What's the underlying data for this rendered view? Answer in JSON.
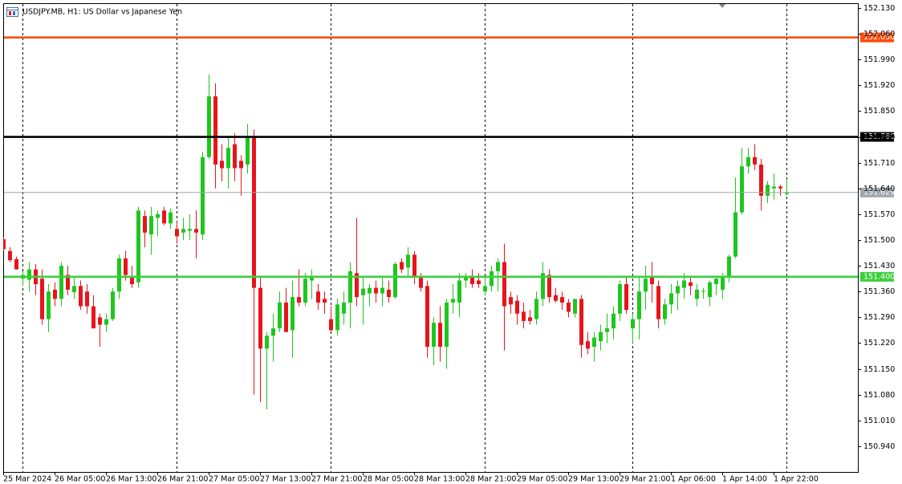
{
  "chart_data": {
    "type": "candlestick",
    "title": "USDJPY.MB, H1:  US Dollar vs Japanese Yen",
    "up_color": "#1fc61f",
    "down_color": "#e8141c",
    "ylim": [
      150.87,
      152.143
    ],
    "yticks": [
      {
        "value": 152.13,
        "label": "152.130"
      },
      {
        "value": 152.06,
        "label": "152.060"
      },
      {
        "value": 151.99,
        "label": "151.990"
      },
      {
        "value": 151.92,
        "label": "151.920"
      },
      {
        "value": 151.85,
        "label": "151.850"
      },
      {
        "value": 151.78,
        "label": "151.780"
      },
      {
        "value": 151.71,
        "label": "151.710"
      },
      {
        "value": 151.64,
        "label": "151.640"
      },
      {
        "value": 151.57,
        "label": "151.570"
      },
      {
        "value": 151.5,
        "label": "151.500"
      },
      {
        "value": 151.43,
        "label": "151.430"
      },
      {
        "value": 151.36,
        "label": "151.360"
      },
      {
        "value": 151.29,
        "label": "151.290"
      },
      {
        "value": 151.22,
        "label": "151.220"
      },
      {
        "value": 151.15,
        "label": "151.150"
      },
      {
        "value": 151.08,
        "label": "151.080"
      },
      {
        "value": 151.01,
        "label": "151.010"
      },
      {
        "value": 150.94,
        "label": "150.940"
      }
    ],
    "hlines": [
      {
        "value": 152.05,
        "label": "152.050",
        "color": "#ff4d0d"
      },
      {
        "value": 151.78,
        "label": "151.780",
        "color": "#000000"
      },
      {
        "value": 151.4,
        "label": "151.400",
        "color": "#3ccf3c"
      }
    ],
    "current_price": {
      "value": 151.629,
      "label": "151.629",
      "color": "#9ea6ae"
    },
    "categories": [
      "25 Mar 2024",
      null,
      null,
      null,
      null,
      null,
      null,
      null,
      "26 Mar 05:00",
      null,
      null,
      null,
      null,
      null,
      null,
      null,
      "26 Mar 13:00",
      null,
      null,
      null,
      null,
      null,
      null,
      null,
      "26 Mar 21:00",
      null,
      null,
      null,
      null,
      null,
      null,
      null,
      "27 Mar 05:00",
      null,
      null,
      null,
      null,
      null,
      null,
      null,
      "27 Mar 13:00",
      null,
      null,
      null,
      null,
      null,
      null,
      null,
      "27 Mar 21:00",
      null,
      null,
      null,
      null,
      null,
      null,
      null,
      "28 Mar 05:00",
      null,
      null,
      null,
      null,
      null,
      null,
      null,
      "28 Mar 13:00",
      null,
      null,
      null,
      null,
      null,
      null,
      null,
      "28 Mar 21:00",
      null,
      null,
      null,
      null,
      null,
      null,
      null,
      "29 Mar 05:00",
      null,
      null,
      null,
      null,
      null,
      null,
      null,
      "29 Mar 13:00",
      null,
      null,
      null,
      null,
      null,
      null,
      null,
      "29 Mar 21:00",
      null,
      null,
      null,
      null,
      null,
      null,
      null,
      "1 Apr 06:00",
      null,
      null,
      null,
      null,
      null,
      null,
      null,
      "1 Apr 14:00",
      null,
      null,
      null,
      null,
      null,
      null,
      null,
      "1 Apr 22:00",
      null,
      null
    ],
    "open": [
      151.502,
      151.47,
      151.448,
      151.395,
      151.392,
      151.42,
      151.395,
      151.285,
      151.365,
      151.34,
      151.405,
      151.358,
      151.375,
      151.36,
      151.32,
      151.29,
      151.27,
      151.285,
      151.36,
      151.45,
      151.4,
      151.385,
      151.565,
      151.515,
      151.56,
      151.58,
      151.545,
      151.53,
      151.52,
      151.525,
      151.53,
      151.515,
      151.725,
      151.89,
      151.715,
      151.695,
      151.76,
      151.715,
      151.705,
      151.78,
      151.37,
      151.205,
      151.24,
      151.26,
      151.33,
      151.255,
      151.345,
      151.33,
      151.39,
      151.36,
      151.34,
      151.285,
      151.255,
      151.3,
      151.33,
      151.41,
      151.35,
      151.355,
      151.37,
      151.355,
      151.365,
      151.345,
      151.44,
      151.425,
      151.46,
      151.4,
      151.375,
      151.21,
      151.275,
      151.21,
      151.33,
      151.33,
      151.39,
      151.398,
      151.39,
      151.36,
      151.375,
      151.415,
      151.44,
      151.345,
      151.335,
      151.305,
      151.29,
      151.285,
      151.34,
      151.405,
      151.35,
      151.345,
      151.33,
      151.3,
      151.34,
      151.225,
      151.21,
      151.225,
      151.25,
      151.26,
      151.3,
      151.38,
      151.26,
      151.285,
      151.36,
      151.4,
      151.375,
      151.285,
      151.325,
      151.355,
      151.37,
      151.385,
      151.34,
      151.36,
      151.345,
      151.38,
      151.365,
      151.4,
      151.455,
      151.575,
      151.7,
      151.725,
      151.705,
      151.62,
      151.64,
      151.645,
      151.625
    ],
    "high": [
      151.508,
      151.48,
      151.455,
      151.415,
      151.44,
      151.435,
      151.42,
      151.38,
      151.385,
      151.44,
      151.43,
      151.4,
      151.39,
      151.38,
      151.35,
      151.3,
      151.3,
      151.37,
      151.46,
      151.47,
      151.43,
      151.59,
      151.58,
      151.59,
      151.58,
      151.59,
      151.585,
      151.55,
      151.56,
      151.57,
      151.58,
      151.74,
      151.95,
      151.925,
      151.76,
      151.78,
      151.79,
      151.73,
      151.815,
      151.8,
      151.4,
      151.25,
      151.3,
      151.36,
      151.37,
      151.39,
      151.42,
      151.41,
      151.42,
      151.38,
      151.36,
      151.32,
      151.34,
      151.36,
      151.44,
      151.56,
      151.4,
      151.38,
      151.39,
      151.4,
      151.39,
      151.44,
      151.45,
      151.48,
      151.47,
      151.41,
      151.39,
      151.29,
      151.32,
      151.34,
      151.38,
      151.41,
      151.41,
      151.42,
      151.41,
      151.4,
      151.43,
      151.45,
      151.49,
      151.36,
      151.35,
      151.33,
      151.31,
      151.36,
      151.44,
      151.42,
      151.37,
      151.36,
      151.34,
      151.34,
      151.35,
      151.25,
      151.25,
      151.27,
      151.3,
      151.32,
      151.39,
      151.4,
      151.3,
      151.4,
      151.43,
      151.44,
      151.39,
      151.34,
      151.38,
      151.39,
      151.41,
      151.4,
      151.38,
      151.37,
      151.39,
      151.4,
      151.41,
      151.46,
      151.67,
      151.75,
      151.75,
      151.76,
      151.72,
      151.66,
      151.68,
      151.65,
      151.665
    ],
    "low": [
      151.47,
      151.44,
      151.42,
      151.375,
      151.36,
      151.35,
      151.27,
      151.25,
      151.32,
      151.32,
      151.35,
      151.34,
      151.31,
      151.3,
      151.26,
      151.21,
      151.25,
      151.28,
      151.34,
      151.39,
      151.37,
      151.37,
      151.48,
      151.46,
      151.51,
      151.54,
      151.53,
      151.49,
      151.5,
      151.5,
      151.45,
      151.5,
      151.72,
      151.64,
      151.66,
      151.64,
      151.66,
      151.62,
      151.68,
      151.08,
      151.06,
      151.04,
      151.17,
      151.25,
      151.25,
      151.18,
      151.32,
      151.32,
      151.34,
      151.31,
      151.3,
      151.25,
      151.24,
      151.27,
      151.26,
      151.32,
      151.27,
      151.32,
      151.33,
      151.32,
      151.33,
      151.34,
      151.41,
      151.4,
      151.38,
      151.36,
      151.18,
      151.16,
      151.17,
      151.15,
      151.3,
      151.29,
      151.37,
      151.37,
      151.37,
      151.35,
      151.36,
      151.36,
      151.2,
      151.3,
      151.27,
      151.26,
      151.27,
      151.27,
      151.32,
      151.33,
      151.33,
      151.31,
      151.29,
      151.29,
      151.18,
      151.19,
      151.17,
      151.2,
      151.22,
      151.23,
      151.28,
      151.3,
      151.22,
      151.23,
      151.31,
      151.33,
      151.26,
      151.27,
      151.3,
      151.31,
      151.34,
      151.35,
      151.32,
      151.34,
      151.32,
      151.35,
      151.34,
      151.385,
      151.45,
      151.57,
      151.68,
      151.69,
      151.58,
      151.6,
      151.61,
      151.62,
      151.62
    ],
    "close": [
      151.475,
      151.445,
      151.42,
      151.405,
      151.42,
      151.38,
      151.285,
      151.36,
      151.34,
      151.43,
      151.365,
      151.375,
      151.32,
      151.32,
      151.26,
      151.27,
      151.285,
      151.36,
      151.45,
      151.405,
      151.38,
      151.58,
      151.52,
      151.565,
      151.57,
      151.545,
      151.575,
      151.51,
      151.53,
      151.53,
      151.52,
      151.725,
      151.89,
      151.705,
      151.695,
      151.75,
      151.695,
      151.695,
      151.78,
      151.37,
      151.205,
      151.24,
      151.26,
      151.33,
      151.25,
      151.345,
      151.33,
      151.395,
      151.4,
      151.33,
      151.33,
      151.255,
      151.325,
      151.33,
      151.415,
      151.345,
      151.368,
      151.37,
      151.355,
      151.37,
      151.345,
      151.435,
      151.42,
      151.46,
      151.4,
      151.37,
      151.21,
      151.275,
      151.21,
      151.33,
      151.34,
      151.39,
      151.4,
      151.38,
      151.38,
      151.375,
      151.415,
      151.44,
      151.32,
      151.325,
      151.3,
      151.28,
      151.28,
      151.34,
      151.41,
      151.345,
      151.335,
      151.33,
      151.305,
      151.34,
      151.215,
      151.205,
      151.235,
      151.25,
      151.26,
      151.3,
      151.38,
      151.31,
      151.285,
      151.36,
      151.395,
      151.38,
      151.285,
      151.325,
      151.355,
      151.375,
      151.39,
      151.375,
      151.365,
      151.362,
      151.385,
      151.395,
      151.4,
      151.455,
      151.575,
      151.7,
      151.725,
      151.705,
      151.62,
      151.65,
      151.645,
      151.64,
      151.629
    ]
  }
}
